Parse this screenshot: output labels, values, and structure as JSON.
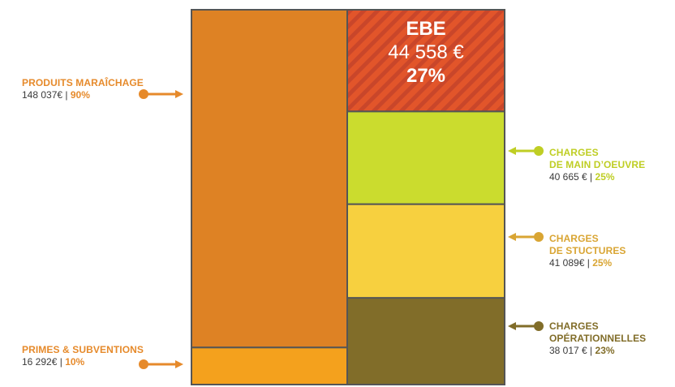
{
  "chart_data": {
    "type": "stacked-bar",
    "stacks": [
      {
        "name": "",
        "segments": [
          {
            "title": "PRIMES & SUBVENTIONS",
            "amount": "16 292€",
            "percent": "10%",
            "value": 16292,
            "color": "#f4a11d"
          },
          {
            "title": "PRODUITS MARAÎCHAGE",
            "amount": "148 037€",
            "percent": "90%",
            "value": 148037,
            "color": "#de8224"
          }
        ]
      },
      {
        "name": "",
        "segments": [
          {
            "title": "CHARGES\nOPÉRATIONNELLES",
            "amount": "38 017 €",
            "percent": "23%",
            "value": 38017,
            "color": "#816d29"
          },
          {
            "title": "CHARGES\nDE STUCTURES",
            "amount": "41 089€",
            "percent": "25%",
            "value": 41089,
            "color": "#f7d03f"
          },
          {
            "title": "CHARGES\nDE MAIN D’OEUVRE",
            "amount": "40 665 €",
            "percent": "25%",
            "value": 40665,
            "color": "#cbdc2e"
          },
          {
            "title": "EBE",
            "amount": "44 558 €",
            "percent": "27%",
            "value": 44558,
            "color": "#e2552a",
            "hatched": true
          }
        ]
      }
    ]
  },
  "labels": {
    "produits": {
      "title": "PRODUITS MARAÎCHAGE",
      "amount": "148 037€",
      "sep": " | ",
      "percent": "90%"
    },
    "primes": {
      "title": "PRIMES & SUBVENTIONS",
      "amount": "16 292€",
      "sep": " | ",
      "percent": "10%"
    },
    "main_oeuvre": {
      "title1": "CHARGES",
      "title2": "DE MAIN D’OEUVRE",
      "amount": "40 665 €",
      "sep": " | ",
      "percent": "25%"
    },
    "structures": {
      "title1": "CHARGES",
      "title2": "DE STUCTURES",
      "amount": "41 089€",
      "sep": " | ",
      "percent": "25%"
    },
    "operationnelles": {
      "title1": "CHARGES",
      "title2": "OPÉRATIONNELLES",
      "amount": "38 017 €",
      "sep": " | ",
      "percent": "23%"
    },
    "ebe": {
      "title": "EBE",
      "amount": "44 558 €",
      "percent": "27%"
    }
  },
  "colors": {
    "produits": "#de8224",
    "primes": "#f4a11d",
    "ebe": "#e2552a",
    "ebe_hatch": "#c9462a",
    "main_oeuvre": "#cbdc2e",
    "structures": "#f7d03f",
    "operationnelles": "#816d29",
    "label_orange": "#e68a2b",
    "label_green": "#bfce24",
    "label_gold": "#d9a533",
    "label_brown": "#816d29",
    "border": "#555555"
  }
}
